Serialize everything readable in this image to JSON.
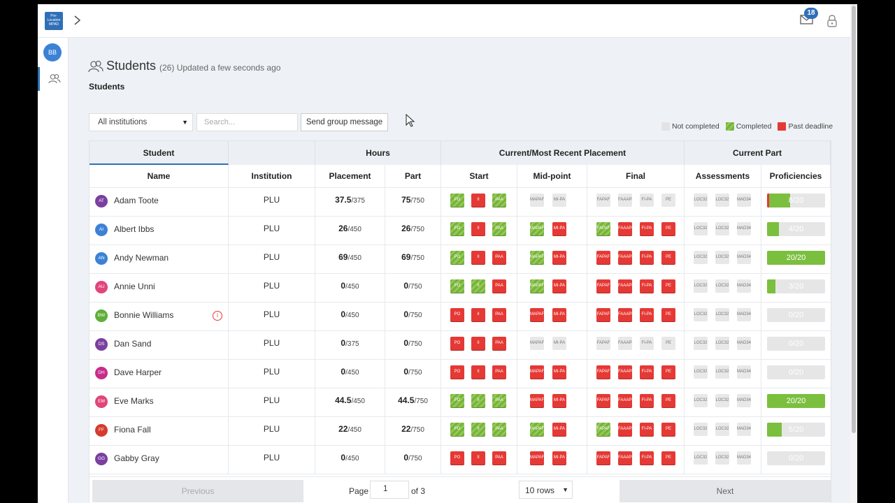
{
  "topbar": {
    "logo_text": "Pre-Location MPAD",
    "mail_badge": "18"
  },
  "sidebar": {
    "user_initials": "BB"
  },
  "header": {
    "title": "Students",
    "count": "(26)",
    "updated": "Updated a few seconds ago",
    "subtitle": "Students"
  },
  "filters": {
    "institution": "All institutions",
    "search_placeholder": "Search...",
    "group_message": "Send group message"
  },
  "legend": [
    {
      "label": "Not completed",
      "color": "#e3e3e3"
    },
    {
      "label": "Completed",
      "color": "#77b23a"
    },
    {
      "label": "Past deadline",
      "color": "#e53935"
    }
  ],
  "table": {
    "groups": [
      "Student",
      "Hours",
      "Current/Most Recent Placement",
      "Current Part"
    ],
    "columns": [
      "Name",
      "Institution",
      "Placement",
      "Part",
      "Start",
      "Mid-point",
      "Final",
      "Assessments",
      "Proficiencies"
    ],
    "rows": [
      {
        "initials": "AT",
        "avatar_color": "#7b3fa0",
        "name": "Adam Toote",
        "institution": "PLU",
        "placement": "37.5",
        "placement_total": "/375",
        "part": "75",
        "part_total": "/750",
        "start": [
          "green",
          "red",
          "green"
        ],
        "mid": [
          "grey",
          "grey"
        ],
        "final": [
          "grey",
          "grey",
          "grey",
          "grey"
        ],
        "assess": [
          "grey",
          "grey",
          "grey"
        ],
        "prof": "8/20",
        "prof_frac": 0.4,
        "prof_warn": true
      },
      {
        "initials": "AI",
        "avatar_color": "#3b82d6",
        "name": "Albert Ibbs",
        "institution": "PLU",
        "placement": "26",
        "placement_total": "/450",
        "part": "26",
        "part_total": "/750",
        "start": [
          "green",
          "red",
          "green"
        ],
        "mid": [
          "green",
          "red"
        ],
        "final": [
          "green",
          "red",
          "red",
          "red"
        ],
        "assess": [
          "grey",
          "grey",
          "grey"
        ],
        "prof": "4/20",
        "prof_frac": 0.2,
        "prof_warn": false
      },
      {
        "initials": "AN",
        "avatar_color": "#3b82d6",
        "name": "Andy Newman",
        "institution": "PLU",
        "placement": "69",
        "placement_total": "/450",
        "part": "69",
        "part_total": "/750",
        "start": [
          "green",
          "red",
          "red"
        ],
        "mid": [
          "green",
          "red"
        ],
        "final": [
          "red",
          "red",
          "red",
          "red"
        ],
        "assess": [
          "grey",
          "grey",
          "grey"
        ],
        "prof": "20/20",
        "prof_frac": 1.0,
        "prof_warn": false
      },
      {
        "initials": "AU",
        "avatar_color": "#e0457b",
        "name": "Annie Unni",
        "institution": "PLU",
        "placement": "0",
        "placement_total": "/450",
        "part": "0",
        "part_total": "/750",
        "start": [
          "green",
          "green",
          "red"
        ],
        "mid": [
          "green",
          "red"
        ],
        "final": [
          "red",
          "red",
          "red",
          "red"
        ],
        "assess": [
          "grey",
          "grey",
          "grey"
        ],
        "prof": "3/20",
        "prof_frac": 0.15,
        "prof_warn": false
      },
      {
        "initials": "BW",
        "avatar_color": "#5fae3a",
        "name": "Bonnie Williams",
        "institution": "PLU",
        "placement": "0",
        "placement_total": "/450",
        "part": "0",
        "part_total": "/750",
        "start": [
          "red",
          "red",
          "red"
        ],
        "mid": [
          "red",
          "red"
        ],
        "final": [
          "red",
          "red",
          "red",
          "red"
        ],
        "assess": [
          "grey",
          "grey",
          "grey"
        ],
        "prof": "0/20",
        "prof_frac": 0,
        "prof_warn": false,
        "info": true
      },
      {
        "initials": "DS",
        "avatar_color": "#7b3fa0",
        "name": "Dan Sand",
        "institution": "PLU",
        "placement": "0",
        "placement_total": "/375",
        "part": "0",
        "part_total": "/750",
        "start": [
          "red",
          "red",
          "red"
        ],
        "mid": [
          "grey",
          "grey"
        ],
        "final": [
          "grey",
          "grey",
          "grey",
          "grey"
        ],
        "assess": [
          "grey",
          "grey",
          "grey"
        ],
        "prof": "0/20",
        "prof_frac": 0,
        "prof_warn": false
      },
      {
        "initials": "DH",
        "avatar_color": "#c72c8a",
        "name": "Dave Harper",
        "institution": "PLU",
        "placement": "0",
        "placement_total": "/450",
        "part": "0",
        "part_total": "/750",
        "start": [
          "red",
          "red",
          "red"
        ],
        "mid": [
          "red",
          "red"
        ],
        "final": [
          "red",
          "red",
          "red",
          "red"
        ],
        "assess": [
          "grey",
          "grey",
          "grey"
        ],
        "prof": "0/20",
        "prof_frac": 0,
        "prof_warn": false
      },
      {
        "initials": "EM",
        "avatar_color": "#e0457b",
        "name": "Eve Marks",
        "institution": "PLU",
        "placement": "44.5",
        "placement_total": "/450",
        "part": "44.5",
        "part_total": "/750",
        "start": [
          "green",
          "green",
          "green"
        ],
        "mid": [
          "red",
          "red"
        ],
        "final": [
          "red",
          "red",
          "red",
          "red"
        ],
        "assess": [
          "grey",
          "grey",
          "grey"
        ],
        "prof": "20/20",
        "prof_frac": 1.0,
        "prof_warn": false
      },
      {
        "initials": "FF",
        "avatar_color": "#d63b2f",
        "name": "Fiona Fall",
        "institution": "PLU",
        "placement": "22",
        "placement_total": "/450",
        "part": "22",
        "part_total": "/750",
        "start": [
          "green",
          "green",
          "green"
        ],
        "mid": [
          "green",
          "red"
        ],
        "final": [
          "green",
          "red",
          "red",
          "red"
        ],
        "assess": [
          "grey",
          "grey",
          "grey"
        ],
        "prof": "5/20",
        "prof_frac": 0.25,
        "prof_warn": false
      },
      {
        "initials": "GG",
        "avatar_color": "#7b3fa0",
        "name": "Gabby Gray",
        "institution": "PLU",
        "placement": "0",
        "placement_total": "/450",
        "part": "0",
        "part_total": "/750",
        "start": [
          "red",
          "red",
          "red"
        ],
        "mid": [
          "red",
          "red"
        ],
        "final": [
          "red",
          "red",
          "red",
          "red"
        ],
        "assess": [
          "grey",
          "grey",
          "grey"
        ],
        "prof": "0/20",
        "prof_frac": 0,
        "prof_warn": false
      }
    ],
    "box_labels": {
      "start": [
        "PO",
        "II",
        "PAA"
      ],
      "mid": [
        "MAPAF",
        "MI-PA"
      ],
      "final": [
        "FAPAF",
        "FAAAPF",
        "FI-PA",
        "PE"
      ],
      "assess": [
        "LOC32",
        "LOC32",
        "MAD34"
      ]
    }
  },
  "pager": {
    "previous": "Previous",
    "page_label": "Page",
    "page": "1",
    "of": "of 3",
    "rows": "10 rows",
    "next": "Next"
  }
}
